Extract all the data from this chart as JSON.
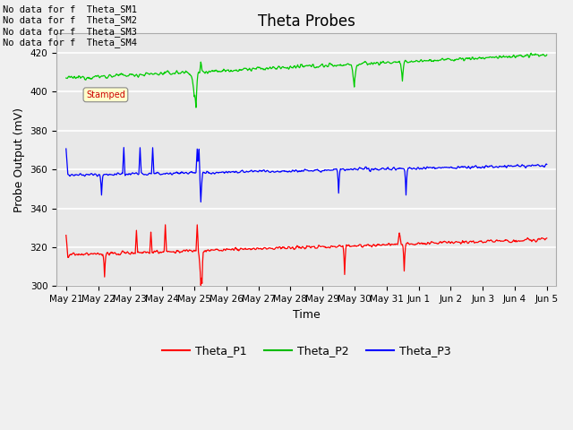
{
  "title": "Theta Probes",
  "xlabel": "Time",
  "ylabel": "Probe Output (mV)",
  "ylim": [
    300,
    430
  ],
  "yticks": [
    300,
    320,
    340,
    360,
    380,
    400,
    420
  ],
  "fig_bg_color": "#f0f0f0",
  "plot_bg_color": "#e8e8e8",
  "annotation_lines": [
    "No data for f  Theta_SM1",
    "No data for f  Theta_SM2",
    "No data for f  Theta_SM3",
    "No data for f  Theta_SM4"
  ],
  "legend_entries": [
    "Theta_P1",
    "Theta_P2",
    "Theta_P3"
  ],
  "legend_colors": [
    "#ff0000",
    "#00bb00",
    "#0000ff"
  ],
  "xticklabels": [
    "May 21",
    "May 22",
    "May 23",
    "May 24",
    "May 25",
    "May 26",
    "May 27",
    "May 28",
    "May 29",
    "May 30",
    "May 31",
    "Jun 1",
    "Jun 2",
    "Jun 3",
    "Jun 4",
    "Jun 5"
  ],
  "p1_color": "#ff0000",
  "p2_color": "#00cc00",
  "p3_color": "#0000ff",
  "title_fontsize": 12,
  "axis_fontsize": 9,
  "tick_fontsize": 7.5,
  "grid_color": "#ffffff",
  "spine_color": "#aaaaaa"
}
